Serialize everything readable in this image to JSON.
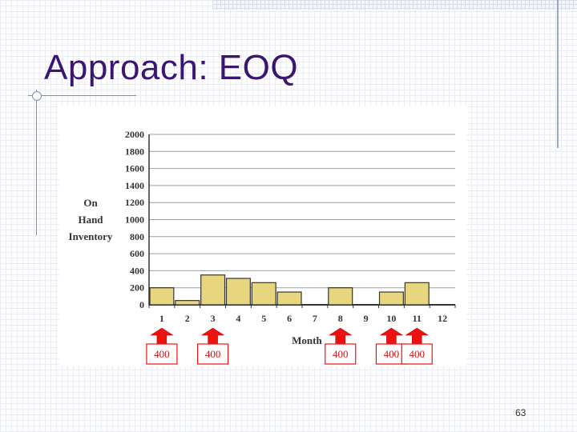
{
  "slide": {
    "title": "Approach: EOQ",
    "page_number": "63"
  },
  "chart_data": {
    "type": "bar",
    "ylabel_lines": [
      "On",
      "Hand",
      "Inventory"
    ],
    "xlabel": "Month",
    "categories": [
      "1",
      "2",
      "3",
      "4",
      "5",
      "6",
      "7",
      "8",
      "9",
      "10",
      "11",
      "12"
    ],
    "values": [
      200,
      50,
      350,
      310,
      260,
      150,
      0,
      200,
      0,
      150,
      260,
      0
    ],
    "ylim": [
      0,
      2000
    ],
    "yticks": [
      0,
      200,
      400,
      600,
      800,
      1000,
      1200,
      1400,
      1600,
      1800,
      2000
    ],
    "grid": true,
    "orders": [
      {
        "month": "1",
        "quantity": "400"
      },
      {
        "month": "3",
        "quantity": "400"
      },
      {
        "month": "8",
        "quantity": "400"
      },
      {
        "month": "10",
        "quantity": "400"
      },
      {
        "month": "11",
        "quantity": "400"
      }
    ],
    "colors": {
      "bar_fill": "#e8d67f",
      "bar_stroke": "#333333",
      "grid": "#9aa0aa",
      "arrow": "#ee1111",
      "order_text": "#cc1111"
    }
  }
}
